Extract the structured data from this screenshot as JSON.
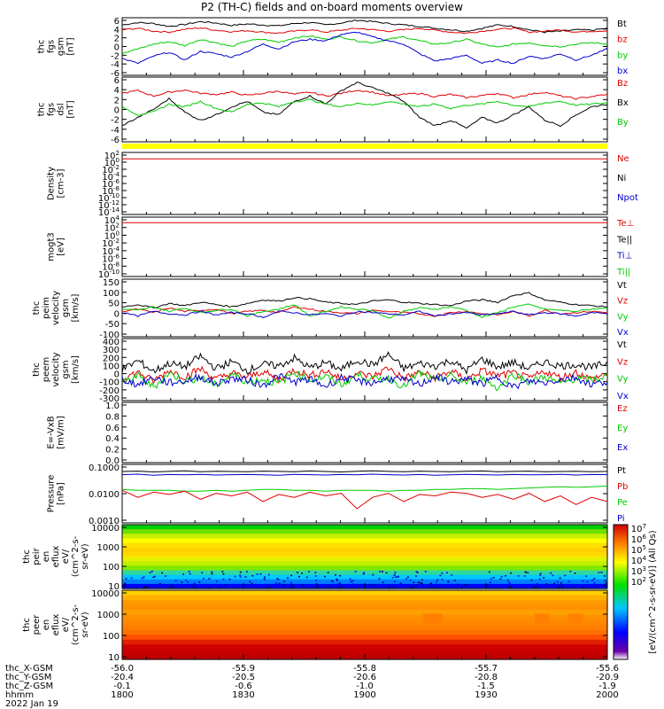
{
  "title": "P2 (TH-C) fields and on-board moments overview",
  "colors": {
    "black": "#000000",
    "red": "#e00000",
    "green": "#00cc00",
    "blue": "#0000cc",
    "yellow": "#ffff00"
  },
  "chart_data": [
    {
      "type": "line",
      "id": "fgs",
      "ylabel": [
        "thc",
        "fgs",
        "gsm",
        "[nT]"
      ],
      "ylim": [
        -6,
        6
      ],
      "yticks": [
        "6",
        "4",
        "2",
        "0",
        "-2",
        "-4",
        "-6"
      ],
      "legend": [
        "Bt",
        "bz",
        "by",
        "bx"
      ],
      "legend_colors": [
        "black",
        "red",
        "green",
        "blue"
      ],
      "series": [
        {
          "color": "black",
          "values": [
            4.5,
            5.0,
            4.8,
            4.2,
            4.6,
            5.2,
            4.9,
            4.4,
            4.7,
            4.5,
            4.3,
            4.8,
            5.0,
            4.5,
            4.9,
            5.5,
            5.2,
            4.8,
            4.5,
            4.2,
            3.8,
            3.5,
            3.2,
            3.8,
            4.5,
            4.2,
            3.5,
            3.0,
            3.2,
            3.5,
            3.4,
            3.8
          ]
        },
        {
          "color": "red",
          "values": [
            3.5,
            3.8,
            3.2,
            3.0,
            3.6,
            3.9,
            3.4,
            3.1,
            3.3,
            3.0,
            2.8,
            3.2,
            3.5,
            3.0,
            3.4,
            3.8,
            3.5,
            3.2,
            3.5,
            3.8,
            3.4,
            3.0,
            2.8,
            3.2,
            3.6,
            3.8,
            3.0,
            3.2,
            3.5,
            3.0,
            3.2,
            3.3
          ]
        },
        {
          "color": "green",
          "values": [
            -1.5,
            -0.5,
            0.5,
            1.0,
            0.2,
            1.5,
            0.8,
            0.0,
            1.2,
            1.5,
            0.9,
            1.8,
            2.2,
            1.5,
            2.0,
            1.2,
            0.8,
            1.5,
            2.0,
            1.2,
            0.5,
            0.8,
            1.5,
            0.5,
            -0.2,
            0.5,
            0.8,
            0.2,
            0.0,
            0.5,
            0.8,
            0.5
          ]
        },
        {
          "color": "blue",
          "values": [
            -2.5,
            -3.5,
            -2.0,
            -1.2,
            -2.8,
            -1.0,
            -1.5,
            -2.2,
            -1.0,
            0.5,
            -0.5,
            1.0,
            1.5,
            1.2,
            2.5,
            3.0,
            2.0,
            1.2,
            0.5,
            -1.5,
            -3.0,
            -2.5,
            -1.8,
            -3.5,
            -2.8,
            -3.5,
            -2.0,
            -2.5,
            -1.5,
            -2.8,
            -1.8,
            -0.5
          ]
        }
      ]
    },
    {
      "type": "line",
      "id": "fgs_dsl",
      "ylabel": [
        "thc",
        "fgs",
        "dsl",
        "[nT]"
      ],
      "ylim": [
        -6,
        6
      ],
      "yticks": [
        "6",
        "4",
        "2",
        "0",
        "-2",
        "-4",
        "-6"
      ],
      "legend": [
        "Bz",
        "Bx",
        "By"
      ],
      "legend_colors": [
        "red",
        "black",
        "green"
      ],
      "series": [
        {
          "color": "red",
          "values": [
            3.0,
            3.5,
            2.5,
            3.2,
            3.6,
            3.0,
            2.8,
            3.2,
            2.6,
            3.0,
            3.4,
            2.8,
            3.2,
            2.5,
            3.0,
            3.6,
            3.2,
            2.5,
            2.8,
            3.0,
            2.4,
            2.8,
            2.2,
            2.6,
            3.0,
            2.2,
            2.8,
            3.2,
            2.5,
            2.0,
            2.4,
            2.8
          ]
        },
        {
          "color": "black",
          "values": [
            -3.0,
            -1.5,
            0.0,
            2.0,
            -0.5,
            -2.0,
            -1.0,
            0.5,
            1.5,
            -0.5,
            -1.0,
            1.5,
            2.5,
            1.0,
            3.5,
            5.0,
            4.0,
            3.0,
            1.5,
            -1.5,
            -3.0,
            -2.0,
            -3.5,
            -1.5,
            -2.5,
            -1.0,
            0.5,
            -2.0,
            -3.0,
            -1.0,
            0.5,
            1.0
          ]
        },
        {
          "color": "green",
          "values": [
            0.5,
            -1.0,
            -0.5,
            1.0,
            0.5,
            1.5,
            0.2,
            -0.5,
            1.0,
            1.2,
            0.5,
            1.5,
            1.8,
            1.0,
            0.5,
            1.2,
            0.8,
            1.5,
            1.0,
            0.5,
            1.0,
            0.2,
            0.8,
            1.0,
            1.5,
            0.8,
            0.5,
            1.2,
            1.5,
            0.8,
            1.0,
            1.2
          ]
        }
      ]
    },
    {
      "type": "bar",
      "id": "mode_bar",
      "ylabel": [],
      "legend": [],
      "note": "yellow spin-mode strip"
    },
    {
      "type": "line",
      "id": "density",
      "scale": "log",
      "ylabel": [
        "Density",
        "[cm-3]"
      ],
      "yticks": [
        "10^2",
        "10^0",
        "10^-2",
        "10^-4",
        "10^-6",
        "10^-8",
        "10^-10",
        "10^-12",
        "10^-14"
      ],
      "legend": [
        "Ne",
        "Ni",
        "Npot"
      ],
      "legend_colors": [
        "red",
        "black",
        "blue"
      ],
      "series": [
        {
          "color": "red",
          "values": [
            1.0,
            1.0,
            1.0,
            1.0,
            1.0,
            1.0,
            1.0,
            1.0
          ]
        }
      ]
    },
    {
      "type": "line",
      "id": "temperature",
      "scale": "log",
      "ylabel": [
        "mogt3",
        "[eV]"
      ],
      "yticks": [
        "10^4",
        "10^2",
        "10^0",
        "10^-2",
        "10^-4",
        "10^-6",
        "10^-8",
        "10^-10"
      ],
      "legend": [
        "Te⊥",
        "Te||",
        "Ti⊥",
        "Ti||"
      ],
      "legend_colors": [
        "red",
        "black",
        "blue",
        "green"
      ],
      "series": [
        {
          "color": "red",
          "values": [
            2.5,
            2.5,
            2.5,
            2.5,
            2.5,
            2.5,
            2.5,
            2.5
          ]
        }
      ]
    },
    {
      "type": "line",
      "id": "peim_vel",
      "ylabel": [
        "thc",
        "peim",
        "velocity",
        "gsm",
        "[km/s]"
      ],
      "ylim": [
        -100,
        150
      ],
      "yticks": [
        "150",
        "100",
        "50",
        "0",
        "-50",
        "-100"
      ],
      "legend": [
        "Vt",
        "Vz",
        "Vy",
        "Vx"
      ],
      "legend_colors": [
        "black",
        "red",
        "green",
        "blue"
      ],
      "series": [
        {
          "color": "black",
          "values": [
            30,
            40,
            25,
            45,
            35,
            50,
            40,
            30,
            45,
            60,
            55,
            70,
            65,
            50,
            45,
            40,
            55,
            60,
            50,
            45,
            40,
            35,
            55,
            60,
            50,
            80,
            90,
            60,
            50,
            40,
            35,
            30
          ]
        },
        {
          "color": "red",
          "values": [
            10,
            20,
            5,
            25,
            10,
            15,
            20,
            0,
            10,
            15,
            5,
            30,
            20,
            10,
            5,
            0,
            15,
            10,
            5,
            0,
            -10,
            5,
            10,
            0,
            -5,
            10,
            -10,
            15,
            0,
            5,
            10,
            5
          ]
        },
        {
          "color": "green",
          "values": [
            20,
            15,
            30,
            10,
            25,
            5,
            15,
            20,
            -10,
            10,
            20,
            40,
            -10,
            10,
            30,
            20,
            15,
            -20,
            10,
            25,
            20,
            30,
            15,
            -15,
            5,
            30,
            40,
            20,
            15,
            10,
            20,
            25
          ]
        },
        {
          "color": "blue",
          "values": [
            5,
            -10,
            10,
            0,
            -5,
            10,
            -5,
            5,
            0,
            -15,
            10,
            5,
            -5,
            0,
            -10,
            10,
            5,
            0,
            -5,
            10,
            -10,
            0,
            5,
            -5,
            0,
            10,
            -5,
            5,
            0,
            -10,
            5,
            0
          ]
        }
      ]
    },
    {
      "type": "line",
      "id": "peem_vel",
      "ylabel": [
        "thc",
        "peem",
        "velocity",
        "gsm",
        "[km/s]"
      ],
      "ylim": [
        -300,
        400
      ],
      "yticks": [
        "400",
        "300",
        "200",
        "100",
        "0",
        "-100",
        "-200",
        "-300"
      ],
      "legend": [
        "Vt",
        "Vz",
        "Vy",
        "Vx"
      ],
      "legend_colors": [
        "black",
        "red",
        "green",
        "blue"
      ],
      "series": [
        {
          "color": "black",
          "values": [
            50,
            150,
            30,
            120,
            80,
            200,
            60,
            140,
            40,
            110,
            90,
            180,
            70,
            130,
            50,
            160,
            100,
            220,
            60,
            120,
            90,
            150,
            40,
            170,
            80,
            130,
            60,
            140,
            90,
            110,
            70,
            130
          ]
        },
        {
          "color": "red",
          "values": [
            -50,
            20,
            -80,
            40,
            -30,
            60,
            -60,
            10,
            -40,
            30,
            -70,
            50,
            -20,
            40,
            -60,
            10,
            -30,
            70,
            -50,
            20,
            -40,
            30,
            -60,
            40,
            -20,
            10,
            -50,
            30,
            -40,
            20,
            -60,
            10
          ]
        },
        {
          "color": "green",
          "values": [
            -100,
            -20,
            -150,
            10,
            -80,
            -40,
            -130,
            0,
            -90,
            -60,
            -110,
            20,
            -70,
            -30,
            -120,
            -10,
            -60,
            -50,
            -140,
            10,
            -80,
            -20,
            -100,
            -40,
            -160,
            0,
            -90,
            -30,
            -110,
            -50,
            -70,
            -20
          ]
        },
        {
          "color": "blue",
          "values": [
            -60,
            -120,
            -40,
            -100,
            -80,
            -30,
            -110,
            -50,
            -70,
            -130,
            -20,
            -90,
            -60,
            -140,
            -40,
            -80,
            -100,
            -50,
            -70,
            -120,
            -30,
            -90,
            -60,
            -110,
            -40,
            -150,
            -80,
            -100,
            -60,
            -40,
            -120,
            -80
          ]
        }
      ]
    },
    {
      "type": "line",
      "id": "efield",
      "ylabel": [
        "E=-VxB",
        "[mV/m]"
      ],
      "ylim": [
        0,
        1
      ],
      "yticks": [
        "1.0",
        "0.8",
        "0.6",
        "0.4",
        "0.2",
        "0.0"
      ],
      "legend": [
        "Ez",
        "Ey",
        "Ex"
      ],
      "legend_colors": [
        "red",
        "green",
        "blue"
      ],
      "series": []
    },
    {
      "type": "line",
      "id": "pressure",
      "scale": "log",
      "ylabel": [
        "Pressure",
        "[nPa]"
      ],
      "yticks": [
        "0.1000",
        "0.0100",
        "0.0010"
      ],
      "legend": [
        "Pt",
        "Pb",
        "Pe",
        "Pi"
      ],
      "legend_colors": [
        "black",
        "red",
        "green",
        "blue"
      ],
      "series": [
        {
          "color": "black",
          "values": [
            0.075,
            0.078,
            0.072,
            0.076,
            0.08,
            0.074,
            0.077,
            0.075,
            0.073,
            0.078,
            0.076,
            0.074,
            0.079,
            0.075,
            0.072,
            0.077,
            0.08,
            0.076,
            0.074,
            0.078,
            0.075,
            0.073,
            0.077,
            0.079,
            0.074,
            0.076,
            0.078,
            0.073,
            0.075,
            0.077,
            0.074,
            0.076
          ]
        },
        {
          "color": "blue",
          "values": [
            0.055,
            0.058,
            0.052,
            0.056,
            0.054,
            0.057,
            0.053,
            0.055,
            0.056,
            0.054,
            0.052,
            0.057,
            0.055,
            0.053,
            0.056,
            0.054,
            0.058,
            0.055,
            0.053,
            0.056,
            0.052,
            0.054,
            0.057,
            0.055,
            0.053,
            0.056,
            0.054,
            0.055,
            0.057,
            0.053,
            0.056,
            0.055
          ]
        },
        {
          "color": "green",
          "values": [
            0.013,
            0.012,
            0.012,
            0.012,
            0.011,
            0.011,
            0.012,
            0.011,
            0.012,
            0.013,
            0.013,
            0.012,
            0.012,
            0.011,
            0.012,
            0.012,
            0.012,
            0.011,
            0.012,
            0.012,
            0.013,
            0.013,
            0.014,
            0.014,
            0.013,
            0.014,
            0.015,
            0.016,
            0.017,
            0.016,
            0.017,
            0.018
          ]
        },
        {
          "color": "red",
          "values": [
            0.012,
            0.006,
            0.01,
            0.008,
            0.011,
            0.005,
            0.009,
            0.007,
            0.01,
            0.004,
            0.008,
            0.006,
            0.01,
            0.007,
            0.009,
            0.002,
            0.006,
            0.009,
            0.004,
            0.008,
            0.007,
            0.01,
            0.009,
            0.006,
            0.008,
            0.005,
            0.009,
            0.004,
            0.007,
            0.003,
            0.006,
            0.004
          ]
        }
      ]
    },
    {
      "type": "heatmap",
      "id": "peir",
      "ylabel": [
        "thc",
        "peir",
        "en",
        "eflux",
        "eV/",
        "(cm^2-s-",
        "sr-eV)"
      ],
      "yticks": [
        "10000",
        "1000",
        "100",
        "10"
      ]
    },
    {
      "type": "heatmap",
      "id": "peer",
      "ylabel": [
        "thc",
        "peer",
        "en",
        "eflux",
        "eV/",
        "(cm^2-s-",
        "sr-eV)"
      ],
      "yticks": [
        "10000",
        "1000",
        "100",
        "10"
      ]
    }
  ],
  "colorbar": {
    "labels": [
      "10^7",
      "10^6",
      "10^5",
      "10^4",
      "10^3",
      "10^2"
    ],
    "title": "[eV/(cm^2-s-sr-eV)] (All Qs)"
  },
  "xaxis": {
    "row_labels": [
      "thc_X-GSM",
      "thc_Y-GSM",
      "thc_Z-GSM",
      "hhmm",
      "2022 Jan 19"
    ],
    "columns": [
      [
        "-56.0",
        "-20.4",
        "-0.1",
        "1800"
      ],
      [
        "-55.9",
        "-20.5",
        "-0.6",
        "1830"
      ],
      [
        "-55.8",
        "-20.6",
        "-1.0",
        "1900"
      ],
      [
        "-55.7",
        "-20.8",
        "-1.5",
        "1930"
      ],
      [
        "-55.6",
        "-20.9",
        "-1.9",
        "2000"
      ]
    ]
  }
}
